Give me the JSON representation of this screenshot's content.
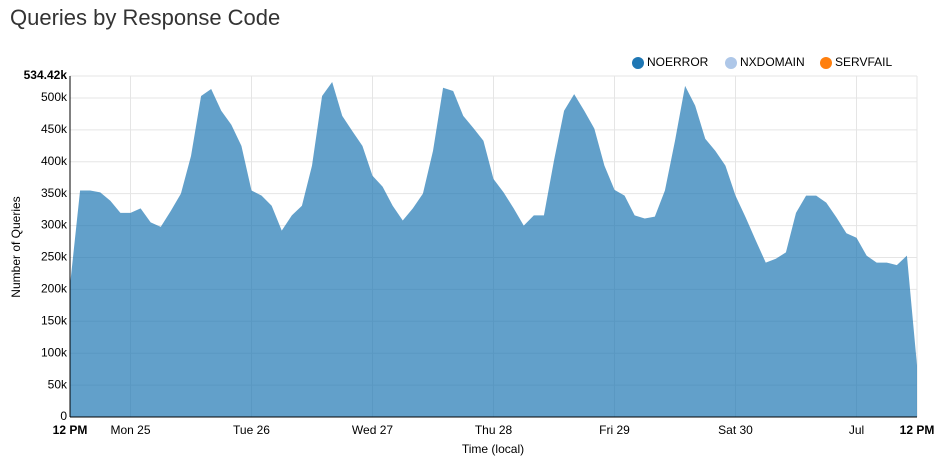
{
  "chart_data": {
    "type": "stacked-area",
    "title": "Queries by Response Code",
    "xlabel": "Time (local)",
    "ylabel": "Number of Queries",
    "x": [
      0,
      2,
      4,
      6,
      8,
      10,
      12,
      14,
      16,
      18,
      20,
      22,
      24,
      26,
      28,
      30,
      32,
      34,
      36,
      38,
      40,
      42,
      44,
      46,
      48,
      50,
      52,
      54,
      56,
      58,
      60,
      62,
      64,
      66,
      68,
      70,
      72,
      74,
      76,
      78,
      80,
      82,
      84,
      86,
      88,
      90,
      92,
      94,
      96,
      98,
      100,
      102,
      104,
      106,
      108,
      110,
      112,
      114,
      116,
      118,
      120,
      122,
      124,
      126,
      128,
      130,
      132,
      134,
      136,
      138,
      140,
      142,
      144,
      146,
      148,
      150,
      152,
      154,
      156,
      158,
      160,
      162,
      164,
      166,
      168
    ],
    "series": [
      {
        "name": "NOERROR",
        "color": "#1f77b4",
        "values": [
          206000,
          355000,
          355000,
          352000,
          339000,
          320000,
          320000,
          327000,
          305000,
          298000,
          323000,
          350000,
          409000,
          503000,
          514000,
          480000,
          458000,
          425000,
          355000,
          347000,
          331000,
          292000,
          316000,
          331000,
          394000,
          503000,
          525000,
          472000,
          448000,
          425000,
          378000,
          361000,
          331000,
          308000,
          327000,
          350000,
          417000,
          516000,
          511000,
          472000,
          453000,
          433000,
          373000,
          352000,
          327000,
          300000,
          316000,
          316000,
          402000,
          480000,
          506000,
          480000,
          452000,
          394000,
          356000,
          347000,
          316000,
          311000,
          314000,
          355000,
          433000,
          519000,
          488000,
          436000,
          417000,
          394000,
          347000,
          313000,
          277000,
          242000,
          248000,
          258000,
          320000,
          347000,
          347000,
          336000,
          313000,
          288000,
          281000,
          253000,
          242000,
          242000,
          238000,
          253000,
          81000
        ]
      },
      {
        "name": "NXDOMAIN",
        "color": "#aec7e8",
        "values": [
          0,
          0,
          0,
          0,
          0,
          0,
          0,
          0,
          0,
          0,
          0,
          0,
          0,
          0,
          0,
          0,
          0,
          0,
          0,
          0,
          0,
          0,
          0,
          0,
          0,
          0,
          0,
          0,
          0,
          0,
          0,
          0,
          0,
          0,
          0,
          0,
          0,
          0,
          0,
          0,
          0,
          0,
          0,
          0,
          0,
          0,
          0,
          0,
          0,
          0,
          0,
          0,
          0,
          0,
          0,
          0,
          0,
          0,
          0,
          0,
          0,
          0,
          0,
          0,
          0,
          0,
          0,
          0,
          0,
          0,
          0,
          0,
          0,
          0,
          0,
          0,
          0,
          0,
          0,
          0,
          0,
          0,
          0,
          0,
          0
        ]
      },
      {
        "name": "SERVFAIL",
        "color": "#ff7f0e",
        "values": [
          0,
          0,
          0,
          0,
          0,
          0,
          0,
          0,
          0,
          0,
          0,
          0,
          0,
          0,
          0,
          0,
          0,
          0,
          0,
          0,
          0,
          0,
          0,
          0,
          0,
          0,
          0,
          0,
          0,
          0,
          0,
          0,
          0,
          0,
          0,
          0,
          0,
          0,
          0,
          0,
          0,
          0,
          0,
          0,
          0,
          0,
          0,
          0,
          0,
          0,
          0,
          0,
          0,
          0,
          0,
          0,
          0,
          0,
          0,
          0,
          0,
          0,
          0,
          0,
          0,
          0,
          0,
          0,
          0,
          0,
          0,
          0,
          0,
          0,
          0,
          0,
          0,
          0,
          0,
          0,
          0,
          0,
          0,
          0,
          0
        ]
      }
    ],
    "xlim": [
      0,
      168
    ],
    "xticks": [
      {
        "value": 0,
        "label": "12 PM"
      },
      {
        "value": 12,
        "label": "Mon 25"
      },
      {
        "value": 36,
        "label": "Tue 26"
      },
      {
        "value": 60,
        "label": "Wed 27"
      },
      {
        "value": 84,
        "label": "Thu 28"
      },
      {
        "value": 108,
        "label": "Fri 29"
      },
      {
        "value": 132,
        "label": "Sat 30"
      },
      {
        "value": 156,
        "label": "Jul"
      },
      {
        "value": 168,
        "label": "12 PM"
      }
    ],
    "ylim": [
      0,
      534420
    ],
    "yticks": [
      {
        "value": 0,
        "label": "0"
      },
      {
        "value": 50000,
        "label": "50k"
      },
      {
        "value": 100000,
        "label": "100k"
      },
      {
        "value": 150000,
        "label": "150k"
      },
      {
        "value": 200000,
        "label": "200k"
      },
      {
        "value": 250000,
        "label": "250k"
      },
      {
        "value": 300000,
        "label": "300k"
      },
      {
        "value": 350000,
        "label": "350k"
      },
      {
        "value": 400000,
        "label": "400k"
      },
      {
        "value": 450000,
        "label": "450k"
      },
      {
        "value": 500000,
        "label": "500k"
      },
      {
        "value": 534420,
        "label": "534.42k"
      }
    ],
    "grid": true,
    "legend": "top-right"
  }
}
